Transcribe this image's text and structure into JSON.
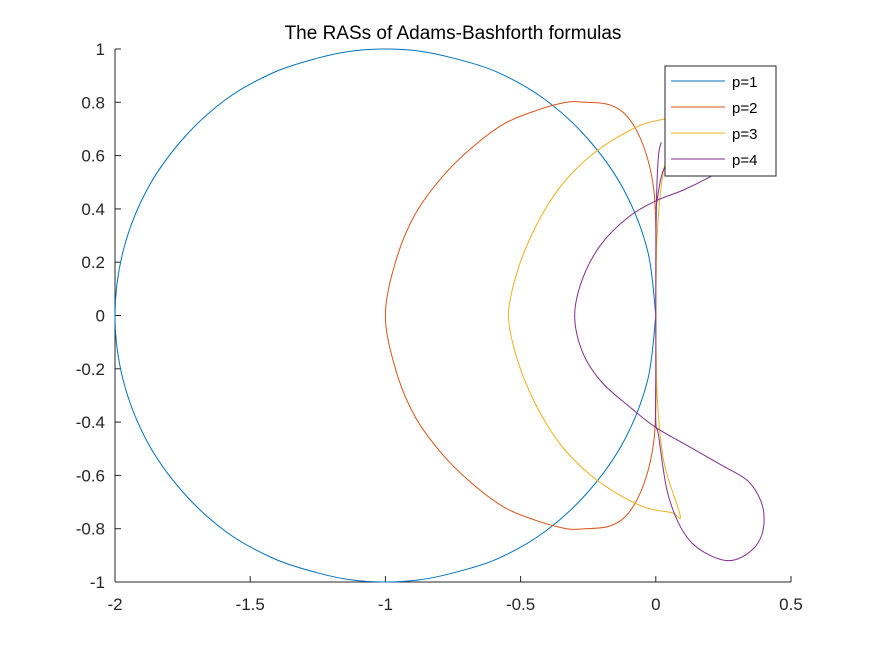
{
  "chart_data": {
    "type": "line",
    "title": "The RASs of Adams-Bashforth formulas",
    "xlabel": "",
    "ylabel": "",
    "xlim": [
      -2,
      0.5
    ],
    "ylim": [
      -1,
      1
    ],
    "xticks": [
      -2,
      -1.5,
      -1,
      -0.5,
      0,
      0.5
    ],
    "yticks": [
      -1,
      -0.8,
      -0.6,
      -0.4,
      -0.2,
      0,
      0.2,
      0.4,
      0.6,
      0.8,
      1
    ],
    "xtick_labels": [
      "-2",
      "-1.5",
      "-1",
      "-0.5",
      "0",
      "0.5"
    ],
    "ytick_labels": [
      "-1",
      "-0.8",
      "-0.6",
      "-0.4",
      "-0.2",
      "0",
      "0.2",
      "0.4",
      "0.6",
      "0.8",
      "1"
    ],
    "grid": false,
    "legend_position": "top-right",
    "series": [
      {
        "name": "p=1",
        "color": "#0072BD",
        "points": [
          [
            0,
            0
          ],
          [
            -0.0302,
            0.2425
          ],
          [
            -0.117,
            0.4694
          ],
          [
            -0.25,
            0.6614
          ],
          [
            -0.4122,
            0.8123
          ],
          [
            -0.588,
            0.914
          ],
          [
            -0.75,
            0.966
          ],
          [
            -0.875,
            0.9922
          ],
          [
            -1.0,
            1.0
          ],
          [
            -1.125,
            0.9922
          ],
          [
            -1.25,
            0.966
          ],
          [
            -1.4122,
            0.9123
          ],
          [
            -1.588,
            0.8123
          ],
          [
            -1.75,
            0.6614
          ],
          [
            -1.883,
            0.4694
          ],
          [
            -1.9698,
            0.2425
          ],
          [
            -2.0,
            0
          ],
          [
            -1.9698,
            -0.2425
          ],
          [
            -1.883,
            -0.4694
          ],
          [
            -1.75,
            -0.6614
          ],
          [
            -1.588,
            -0.8123
          ],
          [
            -1.4122,
            -0.9123
          ],
          [
            -1.25,
            -0.966
          ],
          [
            -1.125,
            -0.9922
          ],
          [
            -1.0,
            -1.0
          ],
          [
            -0.875,
            -0.9922
          ],
          [
            -0.75,
            -0.966
          ],
          [
            -0.588,
            -0.914
          ],
          [
            -0.4122,
            -0.8123
          ],
          [
            -0.25,
            -0.6614
          ],
          [
            -0.117,
            -0.4694
          ],
          [
            -0.0302,
            -0.2425
          ],
          [
            0,
            0
          ]
        ]
      },
      {
        "name": "p=2",
        "color": "#D95319",
        "points": [
          [
            0,
            0
          ],
          [
            0.0008,
            0.24
          ],
          [
            -0.006,
            0.46
          ],
          [
            -0.04,
            0.62
          ],
          [
            -0.1,
            0.74
          ],
          [
            -0.17,
            0.79
          ],
          [
            -0.26,
            0.8
          ],
          [
            -0.33,
            0.8
          ],
          [
            -0.44,
            0.77
          ],
          [
            -0.56,
            0.72
          ],
          [
            -0.68,
            0.63
          ],
          [
            -0.79,
            0.52
          ],
          [
            -0.89,
            0.38
          ],
          [
            -0.96,
            0.21
          ],
          [
            -1.0,
            0
          ],
          [
            -0.96,
            -0.21
          ],
          [
            -0.89,
            -0.38
          ],
          [
            -0.79,
            -0.52
          ],
          [
            -0.68,
            -0.63
          ],
          [
            -0.56,
            -0.72
          ],
          [
            -0.44,
            -0.77
          ],
          [
            -0.33,
            -0.8
          ],
          [
            -0.26,
            -0.8
          ],
          [
            -0.17,
            -0.79
          ],
          [
            -0.1,
            -0.74
          ],
          [
            -0.04,
            -0.62
          ],
          [
            -0.006,
            -0.46
          ],
          [
            0.0008,
            -0.24
          ],
          [
            0,
            0
          ]
        ]
      },
      {
        "name": "p=3",
        "color": "#EDB120",
        "points": [
          [
            0,
            0
          ],
          [
            0.005,
            0.3
          ],
          [
            0.03,
            0.55
          ],
          [
            0.09,
            0.73
          ],
          [
            0.06,
            0.74
          ],
          [
            -0.04,
            0.72
          ],
          [
            -0.14,
            0.67
          ],
          [
            -0.24,
            0.6
          ],
          [
            -0.34,
            0.5
          ],
          [
            -0.42,
            0.38
          ],
          [
            -0.49,
            0.23
          ],
          [
            -0.53,
            0.1
          ],
          [
            -0.545,
            0
          ],
          [
            -0.53,
            -0.1
          ],
          [
            -0.49,
            -0.23
          ],
          [
            -0.42,
            -0.38
          ],
          [
            -0.34,
            -0.5
          ],
          [
            -0.24,
            -0.6
          ],
          [
            -0.14,
            -0.67
          ],
          [
            -0.04,
            -0.72
          ],
          [
            0.06,
            -0.74
          ],
          [
            0.09,
            -0.75
          ],
          [
            0.03,
            -0.55
          ],
          [
            0.005,
            -0.3
          ],
          [
            0,
            0
          ]
        ]
      },
      {
        "name": "p=4",
        "color": "#7E2F8E",
        "points": [
          [
            0,
            0.4
          ],
          [
            0.03,
            0.55
          ],
          [
            0.1,
            0.6
          ],
          [
            0.3,
            0.62
          ],
          [
            0.3,
            0.58
          ],
          [
            0.2,
            0.52
          ],
          [
            0.1,
            0.47
          ],
          [
            0.0,
            0.43
          ],
          [
            -0.1,
            0.37
          ],
          [
            -0.2,
            0.27
          ],
          [
            -0.27,
            0.14
          ],
          [
            -0.3,
            0.0
          ],
          [
            -0.27,
            -0.14
          ],
          [
            -0.2,
            -0.25
          ],
          [
            -0.1,
            -0.34
          ],
          [
            0.0,
            -0.42
          ],
          [
            0.12,
            -0.49
          ],
          [
            0.24,
            -0.56
          ],
          [
            0.34,
            -0.62
          ],
          [
            0.39,
            -0.7
          ],
          [
            0.4,
            -0.78
          ],
          [
            0.38,
            -0.85
          ],
          [
            0.33,
            -0.9
          ],
          [
            0.27,
            -0.92
          ],
          [
            0.2,
            -0.9
          ],
          [
            0.13,
            -0.85
          ],
          [
            0.08,
            -0.77
          ],
          [
            0.04,
            -0.65
          ],
          [
            0.01,
            -0.45
          ],
          [
            0.0,
            -0.4
          ],
          [
            0.0,
            -0.2
          ],
          [
            0.0,
            0.0
          ],
          [
            0.0,
            0.2
          ],
          [
            0.003,
            0.45
          ],
          [
            0.01,
            0.6
          ],
          [
            0.02,
            0.65
          ]
        ]
      }
    ]
  }
}
